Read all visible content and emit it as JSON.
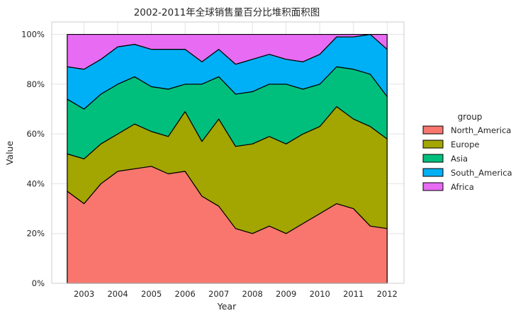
{
  "chart_data": {
    "type": "area",
    "stacked": true,
    "percent": true,
    "title": "2002-2011年全球销售量百分比堆积面积图",
    "xlabel": "Year",
    "ylabel": "Value",
    "xlim": [
      2002.04,
      2012.5
    ],
    "ylim": [
      0,
      1.05
    ],
    "x_ticks": [
      2003,
      2004,
      2005,
      2006,
      2007,
      2008,
      2009,
      2010,
      2011,
      2012
    ],
    "x_tick_labels": [
      "2003",
      "2004",
      "2005",
      "2006",
      "2007",
      "2008",
      "2009",
      "2010",
      "2011",
      "2012"
    ],
    "y_ticks": [
      0,
      0.2,
      0.4,
      0.6,
      0.8,
      1.0
    ],
    "y_tick_labels": [
      "0%",
      "20%",
      "40%",
      "60%",
      "80%",
      "100%"
    ],
    "grid": true,
    "legend": {
      "title": "group",
      "placement": "right",
      "entries": [
        "North_America",
        "Europe",
        "Asia",
        "South_America",
        "Africa"
      ]
    },
    "colors": {
      "North_America": "#F8766D",
      "Europe": "#A3A500",
      "Asia": "#00BF7D",
      "South_America": "#00B0F6",
      "Africa": "#E76BF3"
    },
    "x": [
      2002.5,
      2003.0,
      2003.5,
      2004.0,
      2004.5,
      2005.0,
      2005.5,
      2006.0,
      2006.5,
      2007.0,
      2007.5,
      2008.0,
      2008.5,
      2009.0,
      2009.5,
      2010.0,
      2010.5,
      2011.0,
      2011.5,
      2012.0
    ],
    "cumulative": [
      {
        "name": "North_America",
        "values": [
          0.37,
          0.32,
          0.4,
          0.45,
          0.46,
          0.47,
          0.44,
          0.45,
          0.35,
          0.31,
          0.22,
          0.2,
          0.23,
          0.2,
          0.24,
          0.28,
          0.32,
          0.3,
          0.23,
          0.22
        ]
      },
      {
        "name": "Europe",
        "values": [
          0.52,
          0.5,
          0.56,
          0.6,
          0.64,
          0.61,
          0.59,
          0.69,
          0.57,
          0.66,
          0.55,
          0.56,
          0.59,
          0.56,
          0.6,
          0.63,
          0.71,
          0.66,
          0.63,
          0.58
        ]
      },
      {
        "name": "Asia",
        "values": [
          0.74,
          0.7,
          0.76,
          0.8,
          0.83,
          0.79,
          0.78,
          0.8,
          0.8,
          0.83,
          0.76,
          0.77,
          0.8,
          0.8,
          0.78,
          0.8,
          0.87,
          0.86,
          0.84,
          0.75
        ]
      },
      {
        "name": "South_America",
        "values": [
          0.87,
          0.86,
          0.9,
          0.95,
          0.96,
          0.94,
          0.94,
          0.94,
          0.89,
          0.94,
          0.88,
          0.9,
          0.92,
          0.9,
          0.89,
          0.92,
          0.99,
          0.99,
          1.0,
          0.94
        ]
      },
      {
        "name": "Africa",
        "values": [
          1.0,
          1.0,
          1.0,
          1.0,
          1.0,
          1.0,
          1.0,
          1.0,
          1.0,
          1.0,
          1.0,
          1.0,
          1.0,
          1.0,
          1.0,
          1.0,
          1.0,
          1.0,
          1.0,
          1.0
        ]
      }
    ]
  }
}
